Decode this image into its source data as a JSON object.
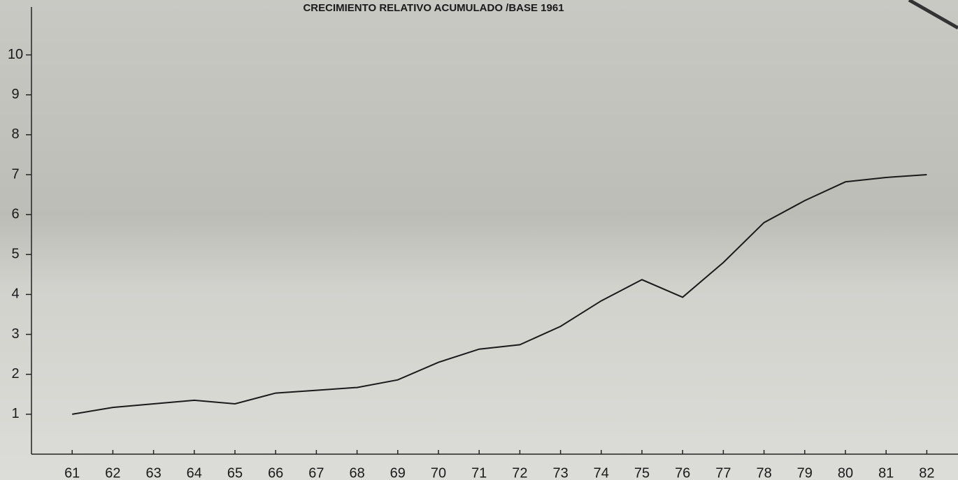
{
  "chart_data": {
    "type": "line",
    "title": "CRECIMIENTO RELATIVO ACUMULADO /BASE 1961",
    "categories": [
      "61",
      "62",
      "63",
      "64",
      "65",
      "66",
      "67",
      "68",
      "69",
      "70",
      "71",
      "72",
      "73",
      "74",
      "75",
      "76",
      "77",
      "78",
      "79",
      "80",
      "81",
      "82"
    ],
    "values": [
      1.0,
      1.17,
      1.26,
      1.35,
      1.26,
      1.53,
      1.6,
      1.67,
      1.86,
      2.3,
      2.63,
      2.74,
      3.2,
      3.84,
      4.37,
      3.93,
      4.8,
      5.8,
      6.35,
      6.82,
      6.93,
      7.0
    ],
    "color": "#1a1a1a",
    "ylim": [
      0,
      11.2
    ],
    "yticks": [
      1,
      2,
      3,
      4,
      5,
      6,
      7,
      8,
      9,
      10
    ],
    "grid": false
  }
}
